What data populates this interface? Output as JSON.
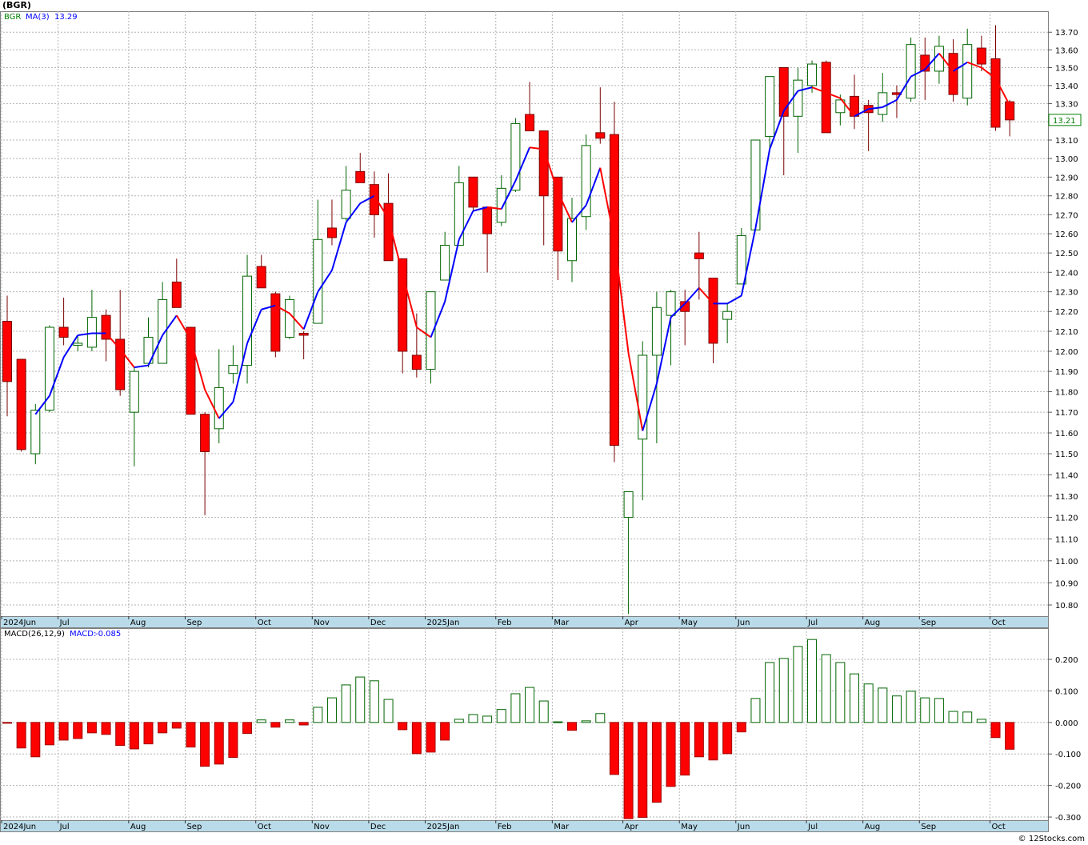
{
  "chart_data": [
    {
      "type": "candlestick",
      "title": "(BGR)",
      "symbol": "BGR",
      "log_scale": true,
      "grid": true,
      "up_color": "#006400",
      "down_color": "#ff0000",
      "tag_color": "#008000",
      "categories": [
        "2024Jun",
        null,
        null,
        null,
        "Jul",
        null,
        null,
        null,
        null,
        "Aug",
        null,
        null,
        null,
        "Sep",
        null,
        null,
        null,
        null,
        "Oct",
        null,
        null,
        null,
        "Nov",
        null,
        null,
        null,
        "Dec",
        null,
        null,
        null,
        "2025Jan",
        null,
        null,
        null,
        null,
        "Feb",
        null,
        null,
        null,
        "Mar",
        null,
        null,
        null,
        null,
        "Apr",
        null,
        null,
        null,
        "May",
        null,
        null,
        null,
        "Jun",
        null,
        null,
        null,
        null,
        "Jul",
        null,
        null,
        null,
        "Aug",
        null,
        null,
        null,
        "Sep",
        null,
        null,
        null,
        null,
        "Oct",
        null
      ],
      "open": [
        12.15,
        11.96,
        11.5,
        11.71,
        12.12,
        12.03,
        12.02,
        12.18,
        12.06,
        11.7,
        11.94,
        11.94,
        12.35,
        12.12,
        11.69,
        11.62,
        11.89,
        11.93,
        12.43,
        12.29,
        12.07,
        12.09,
        12.14,
        12.63,
        12.68,
        12.93,
        12.86,
        12.76,
        12.47,
        11.98,
        11.91,
        12.36,
        12.54,
        12.9,
        12.74,
        12.66,
        12.83,
        13.24,
        13.15,
        12.9,
        12.46,
        12.69,
        13.14,
        13.13,
        11.2,
        11.57,
        11.98,
        12.18,
        12.25,
        12.5,
        12.37,
        12.16,
        12.34,
        12.62,
        13.12,
        13.5,
        13.23,
        13.4,
        13.53,
        13.25,
        13.34,
        13.29,
        13.24,
        13.36,
        13.33,
        13.57,
        13.48,
        13.58,
        13.33,
        13.61,
        13.55,
        13.31
      ],
      "high": [
        12.28,
        11.96,
        11.74,
        12.13,
        12.27,
        12.08,
        12.31,
        12.21,
        12.31,
        11.92,
        12.17,
        12.35,
        12.47,
        12.12,
        11.7,
        12.01,
        12.03,
        12.49,
        12.49,
        12.3,
        12.28,
        12.1,
        12.78,
        12.78,
        12.96,
        13.03,
        12.93,
        12.92,
        12.47,
        12.19,
        12.3,
        12.61,
        12.96,
        12.9,
        12.74,
        12.91,
        13.22,
        13.42,
        13.15,
        12.9,
        12.79,
        13.13,
        13.39,
        13.31,
        11.32,
        12.05,
        12.3,
        12.31,
        12.31,
        12.61,
        12.37,
        12.24,
        12.63,
        13.1,
        13.45,
        13.5,
        13.5,
        13.54,
        13.54,
        13.35,
        13.46,
        13.32,
        13.47,
        13.4,
        13.67,
        13.67,
        13.68,
        13.66,
        13.72,
        13.68,
        13.74,
        13.32
      ],
      "low": [
        11.68,
        11.51,
        11.45,
        11.7,
        12.03,
        12.0,
        12.0,
        11.95,
        11.78,
        11.44,
        11.92,
        11.94,
        12.22,
        11.69,
        11.21,
        11.55,
        11.84,
        11.84,
        12.32,
        11.97,
        12.06,
        11.96,
        12.14,
        12.54,
        12.67,
        12.87,
        12.58,
        12.46,
        11.89,
        11.87,
        11.84,
        12.36,
        12.54,
        12.72,
        12.4,
        12.64,
        12.82,
        13.15,
        12.54,
        12.36,
        12.35,
        12.62,
        13.08,
        11.46,
        10.76,
        11.28,
        11.55,
        11.93,
        12.03,
        12.26,
        11.94,
        12.04,
        12.34,
        12.62,
        13.05,
        12.91,
        13.03,
        13.36,
        13.14,
        13.18,
        13.16,
        13.04,
        13.2,
        13.22,
        13.31,
        13.32,
        13.41,
        13.31,
        13.29,
        13.48,
        13.15,
        13.12
      ],
      "close": [
        11.85,
        11.52,
        11.71,
        12.12,
        12.07,
        12.04,
        12.17,
        12.06,
        11.81,
        11.9,
        12.07,
        12.26,
        12.22,
        11.69,
        11.51,
        11.82,
        11.93,
        12.38,
        12.32,
        12.0,
        12.26,
        12.08,
        12.57,
        12.58,
        12.83,
        12.87,
        12.7,
        12.46,
        12.0,
        11.91,
        12.3,
        12.54,
        12.87,
        12.74,
        12.6,
        12.84,
        13.19,
        13.15,
        12.8,
        12.51,
        12.68,
        13.07,
        13.11,
        11.54,
        11.32,
        11.98,
        12.22,
        12.3,
        12.2,
        12.47,
        12.04,
        12.2,
        12.59,
        13.1,
        13.45,
        13.23,
        13.43,
        13.52,
        13.14,
        13.32,
        13.23,
        13.25,
        13.36,
        13.35,
        13.63,
        13.48,
        13.62,
        13.35,
        13.63,
        13.52,
        13.17,
        13.21
      ],
      "ma": {
        "name": "MA(3)",
        "up_color": "#0000ff",
        "down_color": "#ff0000",
        "values": [
          null,
          null,
          11.69,
          11.78,
          11.97,
          12.08,
          12.09,
          12.09,
          12.01,
          11.92,
          11.93,
          12.08,
          12.18,
          12.06,
          11.81,
          11.67,
          11.75,
          12.04,
          12.21,
          12.23,
          12.19,
          12.11,
          12.3,
          12.41,
          12.66,
          12.76,
          12.8,
          12.68,
          12.39,
          12.12,
          12.07,
          12.25,
          12.57,
          12.72,
          12.74,
          12.73,
          12.88,
          13.06,
          13.05,
          12.82,
          12.66,
          12.75,
          12.95,
          12.57,
          11.99,
          11.61,
          11.84,
          12.17,
          12.24,
          12.32,
          12.24,
          12.24,
          12.28,
          12.63,
          13.05,
          13.26,
          13.37,
          13.39,
          13.36,
          13.33,
          13.23,
          13.27,
          13.28,
          13.32,
          13.45,
          13.49,
          13.58,
          13.48,
          13.53,
          13.5,
          13.44,
          13.29
        ]
      },
      "ylim": [
        10.75,
        13.82
      ],
      "yticks": [
        {
          "value": 13.7,
          "label": "13.70"
        },
        {
          "value": 13.6,
          "label": "13.60"
        },
        {
          "value": 13.5,
          "label": "13.50"
        },
        {
          "value": 13.4,
          "label": "13.40"
        },
        {
          "value": 13.3,
          "label": "13.30"
        },
        {
          "value": 13.2,
          "label": "13.20"
        },
        {
          "value": 13.1,
          "label": "13.10"
        },
        {
          "value": 13.0,
          "label": "13.00"
        },
        {
          "value": 12.9,
          "label": "12.90"
        },
        {
          "value": 12.8,
          "label": "12.80"
        },
        {
          "value": 12.7,
          "label": "12.70"
        },
        {
          "value": 12.6,
          "label": "12.60"
        },
        {
          "value": 12.5,
          "label": "12.50"
        },
        {
          "value": 12.4,
          "label": "12.40"
        },
        {
          "value": 12.3,
          "label": "12.30"
        },
        {
          "value": 12.2,
          "label": "12.20"
        },
        {
          "value": 12.1,
          "label": "12.10"
        },
        {
          "value": 12.0,
          "label": "12.00"
        },
        {
          "value": 11.9,
          "label": "11.90"
        },
        {
          "value": 11.8,
          "label": "11.80"
        },
        {
          "value": 11.7,
          "label": "11.70"
        },
        {
          "value": 11.6,
          "label": "11.60"
        },
        {
          "value": 11.5,
          "label": "11.50"
        },
        {
          "value": 11.4,
          "label": "11.40"
        },
        {
          "value": 11.3,
          "label": "11.30"
        },
        {
          "value": 11.2,
          "label": "11.20"
        },
        {
          "value": 11.1,
          "label": "11.10"
        },
        {
          "value": 11.0,
          "label": "11.00"
        },
        {
          "value": 10.9,
          "label": "10.90"
        },
        {
          "value": 10.8,
          "label": "10.80"
        }
      ]
    },
    {
      "type": "bar",
      "name": "MACD(26,12,9)",
      "value_prefix": "MACD:",
      "grid": true,
      "pos_color": "#006400",
      "neg_color": "#ff0000",
      "categories": [
        "2024Jun",
        null,
        null,
        null,
        "Jul",
        null,
        null,
        null,
        null,
        "Aug",
        null,
        null,
        null,
        "Sep",
        null,
        null,
        null,
        null,
        "Oct",
        null,
        null,
        null,
        "Nov",
        null,
        null,
        null,
        "Dec",
        null,
        null,
        null,
        "2025Jan",
        null,
        null,
        null,
        null,
        "Feb",
        null,
        null,
        null,
        "Mar",
        null,
        null,
        null,
        null,
        "Apr",
        null,
        null,
        null,
        "May",
        null,
        null,
        null,
        "Jun",
        null,
        null,
        null,
        null,
        "Jul",
        null,
        null,
        null,
        "Aug",
        null,
        null,
        null,
        "Sep",
        null,
        null,
        null,
        null,
        "Oct",
        null
      ],
      "values": [
        -0.002,
        -0.081,
        -0.109,
        -0.071,
        -0.056,
        -0.051,
        -0.033,
        -0.038,
        -0.073,
        -0.084,
        -0.068,
        -0.033,
        -0.018,
        -0.078,
        -0.139,
        -0.132,
        -0.111,
        -0.035,
        0.008,
        -0.015,
        0.008,
        -0.008,
        0.048,
        0.078,
        0.119,
        0.144,
        0.132,
        0.073,
        -0.023,
        -0.099,
        -0.094,
        -0.056,
        0.01,
        0.025,
        0.02,
        0.041,
        0.091,
        0.111,
        0.068,
        0.002,
        -0.025,
        0.005,
        0.028,
        -0.165,
        -0.305,
        -0.301,
        -0.253,
        -0.203,
        -0.167,
        -0.109,
        -0.119,
        -0.099,
        -0.03,
        0.076,
        0.19,
        0.203,
        0.241,
        0.263,
        0.215,
        0.19,
        0.154,
        0.122,
        0.109,
        0.084,
        0.099,
        0.078,
        0.076,
        0.035,
        0.033,
        0.01,
        -0.048,
        -0.085
      ],
      "ylim": [
        -0.31,
        0.299
      ],
      "yticks": [
        {
          "value": 0.2,
          "label": "0.200"
        },
        {
          "value": 0.1,
          "label": "0.100"
        },
        {
          "value": 0,
          "label": "0.000"
        },
        {
          "value": -0.1,
          "label": "-0.100"
        },
        {
          "value": -0.2,
          "label": "-0.200"
        },
        {
          "value": -0.3,
          "label": "-0.300"
        }
      ]
    }
  ],
  "footer": "© 12Stocks.com"
}
